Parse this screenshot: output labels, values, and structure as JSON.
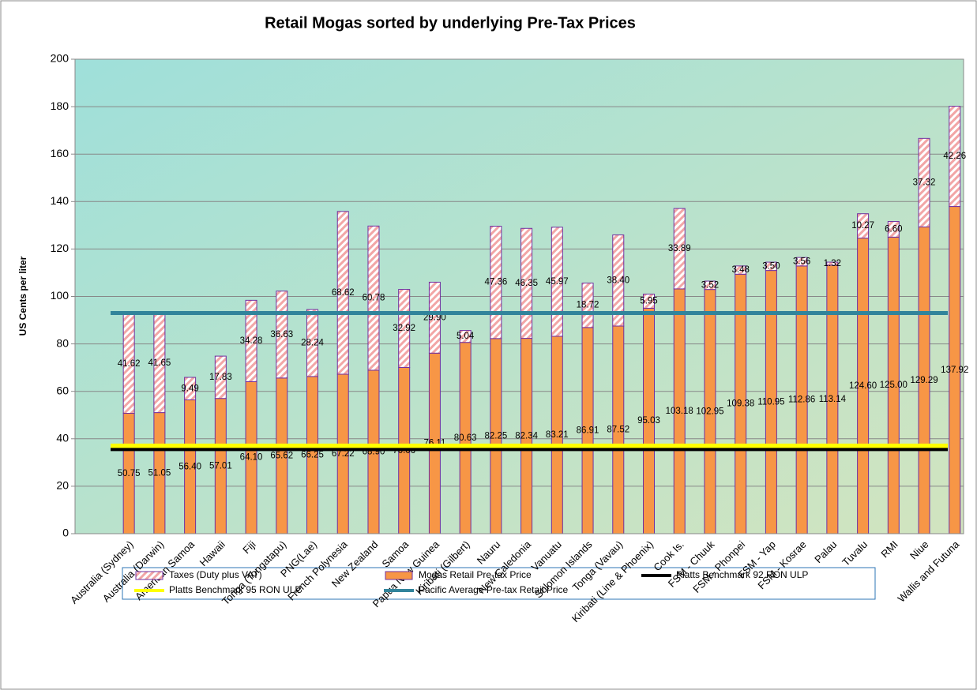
{
  "chart_data": {
    "type": "stacked_bar",
    "title": "Retail Mogas sorted by underlying Pre-Tax Prices",
    "y_label": "US  Cents  per  liter",
    "categories": [
      "Australia (Sydney)",
      "Australia (Darwin)",
      "American Samoa",
      "Hawaii",
      "Fiji",
      "Tonga (Tongatapu)",
      "PNG(Lae)",
      "French Polynesia",
      "New Zealand",
      "Samoa",
      "Papua New Guinea",
      "Kiribati (Gilbert)",
      "Nauru",
      "New Caledonia",
      "Vanuatu",
      "Solomon Islands",
      "Tonga (Vavau)",
      "Kiribati  (Line & Phoenix)",
      "Cook Is.",
      "FSM - Chuuk",
      "FSM - Phonpei",
      "FSM - Yap",
      "FSM - Kosrae",
      "Palau",
      "Tuvalu",
      "RMI",
      "Niue",
      "Wallis and Futuna"
    ],
    "series": [
      {
        "name": "Mogas Retail Pre-tax Price",
        "color": "#f79646",
        "values": [
          50.75,
          51.05,
          56.4,
          57.01,
          64.1,
          65.62,
          66.25,
          67.22,
          68.9,
          70.06,
          76.11,
          80.63,
          82.25,
          82.34,
          83.21,
          86.91,
          87.52,
          95.03,
          103.18,
          102.95,
          109.38,
          110.95,
          112.86,
          113.14,
          124.6,
          125.0,
          129.29,
          137.92
        ],
        "value_labels": [
          "50.75",
          "51.05",
          "56.40",
          "57.01",
          "64.10",
          "65.62",
          "66.25",
          "67.22",
          "68.90",
          "70.06",
          "76.11",
          "80.63",
          "82.25",
          "82.34",
          "83.21",
          "86.91",
          "87.52",
          "95.03",
          "103.18",
          "102.95",
          "109.38",
          "110.95",
          "112.86",
          "113.14",
          "124.60",
          "125.00",
          "129.29",
          "137.92"
        ]
      },
      {
        "name": "Taxes (Duty plus VAT)",
        "color": "#f2a6a6",
        "hatched": true,
        "values": [
          41.62,
          41.65,
          9.49,
          17.83,
          34.28,
          36.63,
          28.24,
          68.62,
          60.78,
          32.92,
          29.9,
          5.04,
          47.36,
          46.35,
          45.97,
          18.72,
          38.4,
          5.95,
          33.89,
          3.52,
          3.48,
          3.5,
          3.56,
          1.32,
          10.27,
          6.6,
          37.32,
          42.26
        ],
        "value_labels": [
          "41.62",
          "41.65",
          "9.49",
          "17.83",
          "34.28",
          "36.63",
          "28.24",
          "68.62",
          "60.78",
          "32.92",
          "29.90",
          "5.04",
          "47.36",
          "46.35",
          "45.97",
          "18.72",
          "38.40",
          "5.95",
          "33.89",
          "3.52",
          "3.48",
          "3.50",
          "3.56",
          "1.32",
          "10.27",
          "6.60",
          "37.32",
          "42.26"
        ]
      }
    ],
    "lines": [
      {
        "name": "Platts Benchmark 92 RON ULP",
        "color": "#000000",
        "value": 35.5
      },
      {
        "name": "Platts Benchmark 95 RON ULP",
        "color": "#ffff00",
        "value": 37
      },
      {
        "name": "Pacific Average Pre-tax Retail Price",
        "color": "#31849b",
        "value": 93
      }
    ],
    "ylim": [
      0,
      200
    ],
    "yticks": [
      0,
      20,
      40,
      60,
      80,
      100,
      120,
      140,
      160,
      180,
      200
    ],
    "grid": true
  }
}
